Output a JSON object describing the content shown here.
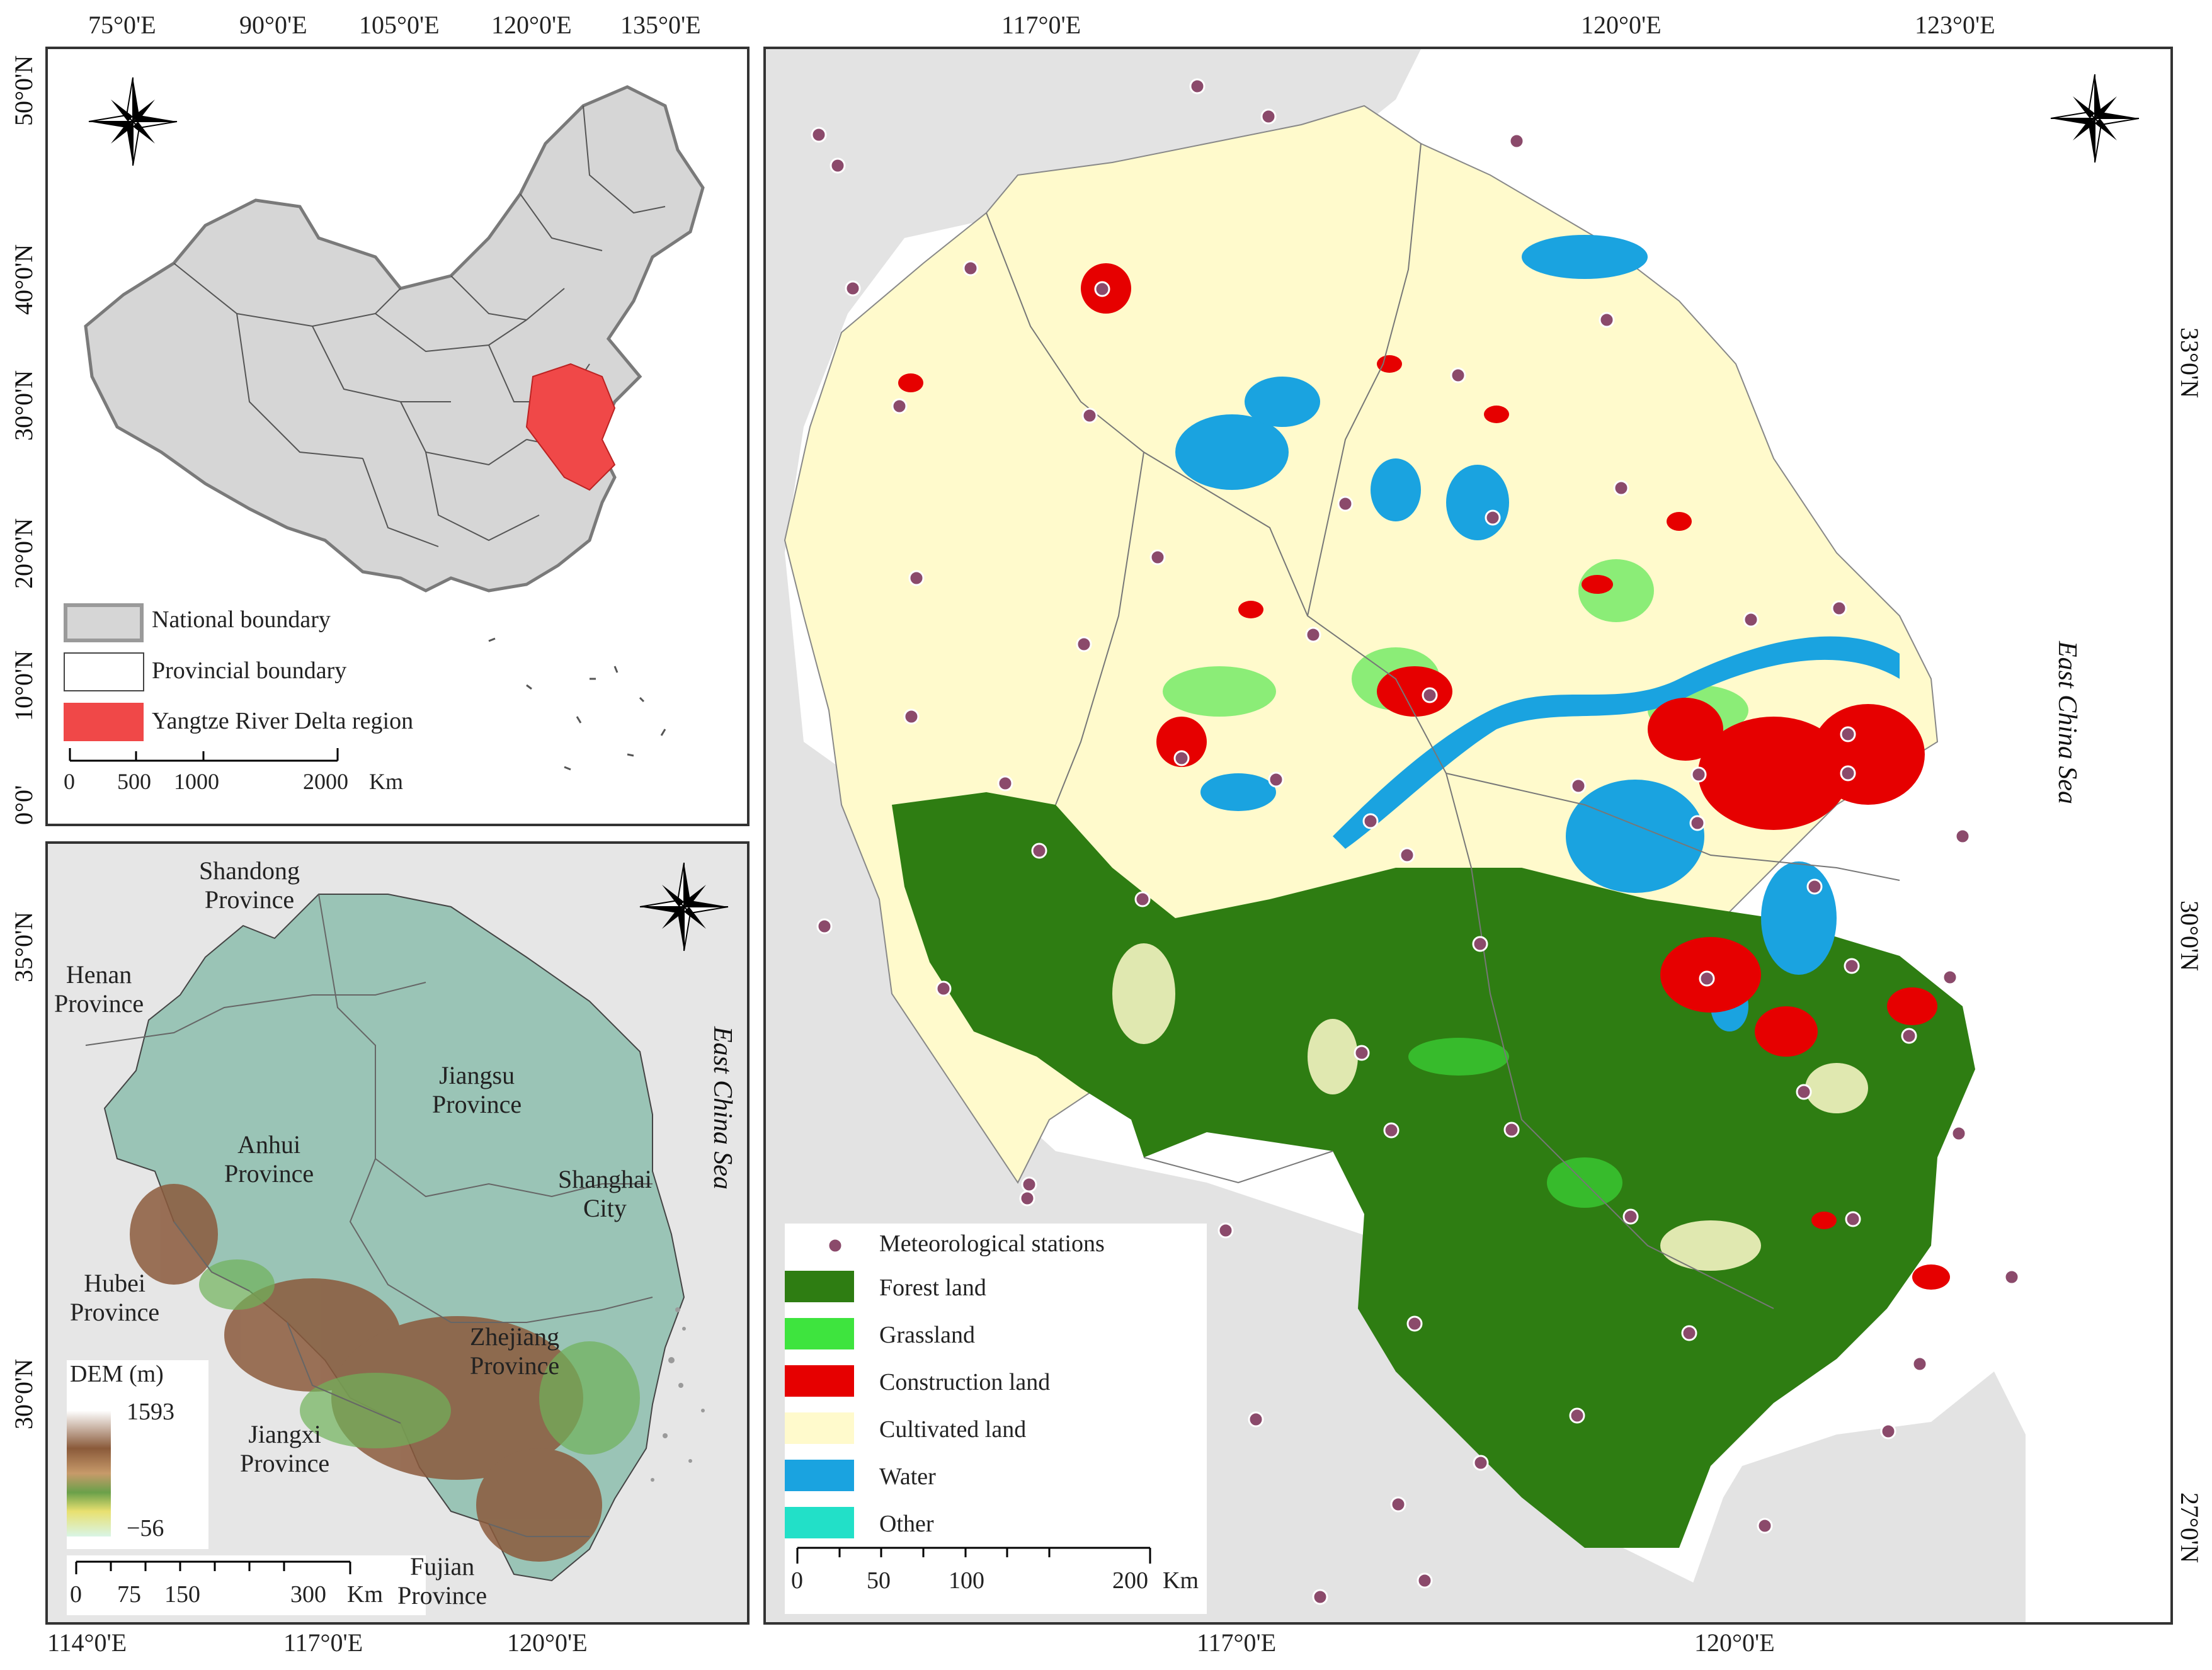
{
  "china_inset": {
    "top_axis_labels": [
      "75°0'E",
      "90°0'E",
      "105°0'E",
      "120°0'E",
      "135°0'E"
    ],
    "left_axis_labels": [
      "50°0'N",
      "40°0'N",
      "30°0'N",
      "20°0'N",
      "10°0'N",
      "0°0'"
    ],
    "legend": [
      {
        "label": "National boundary",
        "color": "#d9d9d9",
        "border": "#9a9a9a"
      },
      {
        "label": "Provincial boundary",
        "color": "#ffffff",
        "border": "#444444"
      },
      {
        "label": "Yangtze River Delta region",
        "color": "#f04848",
        "border": "#f04848"
      }
    ],
    "scale_labels": [
      "0",
      "500",
      "1000",
      "2000"
    ],
    "scale_unit": "Km"
  },
  "dem_inset": {
    "left_axis_labels": [
      "35°0'N",
      "30°0'N"
    ],
    "bottom_axis_labels": [
      "114°0'E",
      "117°0'E",
      "120°0'E"
    ],
    "provinces": [
      {
        "name": "Shandong\nProvince"
      },
      {
        "name": "Henan\nProvince"
      },
      {
        "name": "Jiangsu\nProvince"
      },
      {
        "name": "Anhui\nProvince"
      },
      {
        "name": "Shanghai\nCity"
      },
      {
        "name": "Hubei\nProvince"
      },
      {
        "name": "Zhejiang\nProvince"
      },
      {
        "name": "Jiangxi\nProvince"
      },
      {
        "name": "Fujian\nProvince"
      }
    ],
    "sea_label": "East China Sea",
    "dem_title": "DEM (m)",
    "dem_max": "1593",
    "dem_min": "−56",
    "scale_labels": [
      "0",
      "75",
      "150",
      "300"
    ],
    "scale_unit": "Km"
  },
  "main_map": {
    "top_axis_labels": [
      "117°0'E",
      "120°0'E",
      "123°0'E"
    ],
    "bottom_axis_labels": [
      "117°0'E",
      "120°0'E"
    ],
    "right_axis_labels": [
      "33°0'N",
      "30°0'N",
      "27°0'N"
    ],
    "sea_label": "East China Sea",
    "legend": {
      "station_label": "Meteorological stations",
      "station_color": "#8b4a6b",
      "classes": [
        {
          "label": "Forest land",
          "color": "#2e7d12"
        },
        {
          "label": "Grassland",
          "color": "#3ee43e"
        },
        {
          "label": "Construction land",
          "color": "#e60000"
        },
        {
          "label": "Cultivated land",
          "color": "#fffacc"
        },
        {
          "label": "Water",
          "color": "#1aa3e0"
        },
        {
          "label": "Other",
          "color": "#22e0c8"
        }
      ]
    },
    "scale_labels": [
      "0",
      "50",
      "100",
      "200"
    ],
    "scale_unit": "Km"
  }
}
